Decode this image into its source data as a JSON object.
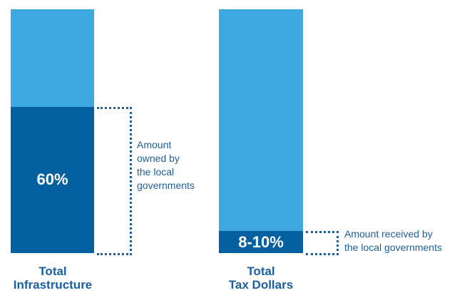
{
  "chart_data": {
    "type": "bar",
    "stacked": true,
    "categories": [
      "Total\nInfrastructure",
      "Total\nTax Dollars"
    ],
    "series": [
      {
        "values": [
          60,
          9
        ],
        "display_labels": [
          "60%",
          "8-10%"
        ],
        "color": "#04609f"
      },
      {
        "values": [
          40,
          91
        ],
        "color": "#3ea8e0"
      }
    ],
    "annotations": [
      "Amount\nowned by\nthe local\ngovernments",
      "Amount received by\nthe local governments"
    ],
    "ylim": [
      0,
      100
    ],
    "grid": false,
    "legend": "none"
  }
}
